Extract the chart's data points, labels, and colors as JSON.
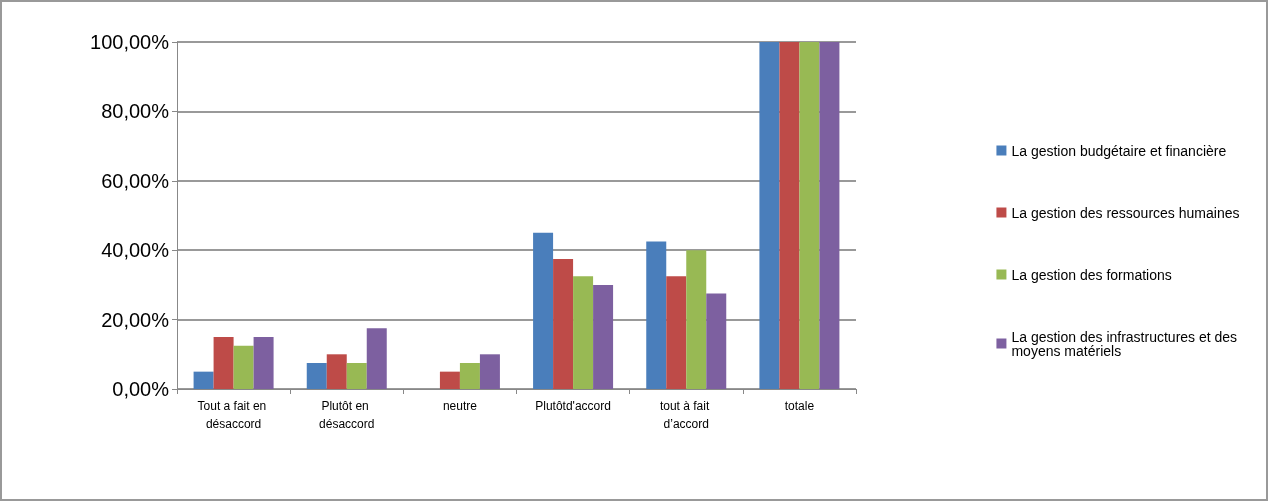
{
  "chart_data": {
    "type": "bar",
    "categories": [
      "Tout a fait en désaccord",
      "Plutôt en désaccord",
      "neutre",
      "Plutôtd'accord",
      "tout à fait d’accord",
      "totale"
    ],
    "series": [
      {
        "name": "La gestion budgétaire et financière",
        "color": "#4a7ebb",
        "values": [
          5,
          7.5,
          0,
          45,
          42.5,
          100
        ]
      },
      {
        "name": "La gestion des ressources humaines",
        "color": "#be4b48",
        "values": [
          15,
          10,
          5,
          37.5,
          32.5,
          100
        ]
      },
      {
        "name": "La gestion des formations",
        "color": "#98b954",
        "values": [
          12.5,
          7.5,
          7.5,
          32.5,
          40,
          100
        ]
      },
      {
        "name": "La gestion des infrastructures et des moyens matériels",
        "color": "#7d60a0",
        "values": [
          15,
          17.5,
          10,
          30,
          27.5,
          100
        ]
      }
    ],
    "ylim": [
      0,
      100
    ],
    "yticks": [
      {
        "value": 0,
        "label": "0,00%"
      },
      {
        "value": 20,
        "label": "20,00%"
      },
      {
        "value": 40,
        "label": "40,00%"
      },
      {
        "value": 60,
        "label": "60,00%"
      },
      {
        "value": 80,
        "label": "80,00%"
      },
      {
        "value": 100,
        "label": "100,00%"
      }
    ],
    "grid": "y",
    "legend": "right"
  }
}
